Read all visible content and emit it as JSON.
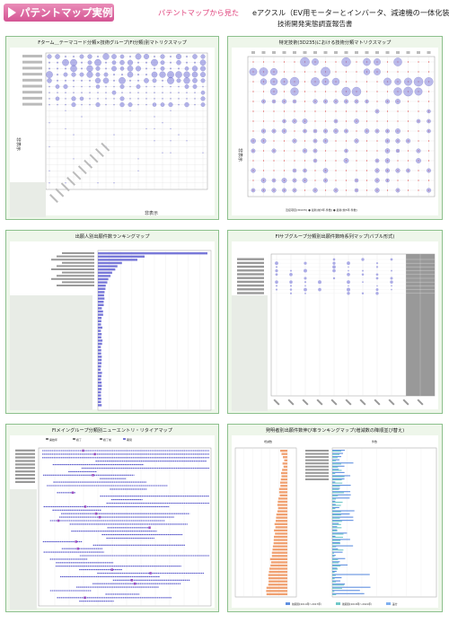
{
  "banner": {
    "title": "パテントマップ実例"
  },
  "header": {
    "lead": "パテントマップから見た",
    "title": "eアクスル（EV用モーターとインバータ、減速機の一体化装置）",
    "subtitle": "技術開発実態調査報告書"
  },
  "panels": [
    {
      "title": "Fターム＿テーマコード分類×技術グループ(FI分類)別マトリクスマップ",
      "yaxis_note": "非表示",
      "xaxis_note": "非表示"
    },
    {
      "title": "特定技術(3D235)における技術分類マトリクスマップ",
      "yaxis_note": "非表示",
      "legend": "近接項目(3D235)  ●  最新(前3年,件数)  ●  最新(前5年,件数)"
    },
    {
      "title": "出願人別出願件数ランキングマップ"
    },
    {
      "title": "FIサブグループ分類別出願件数時系列マップ(バブル形式)"
    },
    {
      "title": "FIメイングループ分類別ニューエントリ・リタイアマップ",
      "legend": [
        "開始年",
        "終了",
        "終了前",
        "期間"
      ]
    },
    {
      "title": "発明者別出願件数伸び率ランキングマップ(増減数の降順並び替え)",
      "left_label": "増減数",
      "right_label": "件数",
      "legend": [
        "前期間(2014年〜2017年)",
        "後期間(2018年〜2021年)",
        "差分"
      ]
    }
  ],
  "colors": {
    "panel_border": "#8cc08c",
    "panel_bg": "#eef6ea",
    "banner": "#d45493",
    "bubble": "#7878d8",
    "bar": "#7878d8",
    "orange": "#f0a070"
  }
}
